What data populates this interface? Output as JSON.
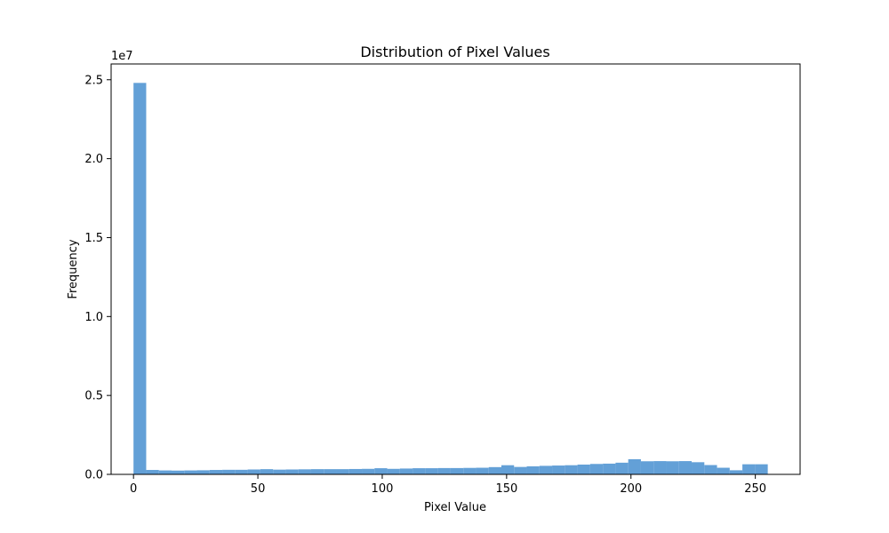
{
  "chart_data": {
    "type": "bar",
    "title": "Distribution of Pixel Values",
    "xlabel": "Pixel Value",
    "ylabel": "Frequency",
    "y_offset_label": "1e7",
    "xlim": [
      -9,
      268
    ],
    "ylim": [
      0,
      26000000
    ],
    "xticks": [
      0,
      50,
      100,
      150,
      200,
      250
    ],
    "xtick_labels": [
      "0",
      "50",
      "100",
      "150",
      "200",
      "250"
    ],
    "yticks": [
      0,
      5000000,
      10000000,
      15000000,
      20000000,
      25000000
    ],
    "ytick_labels": [
      "0.0",
      "0.5",
      "1.0",
      "1.5",
      "2.0",
      "2.5"
    ],
    "bin_range": [
      0,
      255
    ],
    "bins": 50,
    "values": [
      24800000,
      280000,
      250000,
      240000,
      250000,
      260000,
      280000,
      290000,
      290000,
      310000,
      330000,
      300000,
      310000,
      320000,
      330000,
      330000,
      330000,
      340000,
      350000,
      390000,
      350000,
      370000,
      390000,
      390000,
      400000,
      400000,
      410000,
      420000,
      460000,
      580000,
      470000,
      510000,
      540000,
      560000,
      580000,
      620000,
      660000,
      680000,
      740000,
      960000,
      830000,
      840000,
      830000,
      840000,
      770000,
      590000,
      420000,
      260000,
      640000,
      640000
    ],
    "color": "#5b9bd5",
    "grid": false,
    "legend": "none"
  }
}
